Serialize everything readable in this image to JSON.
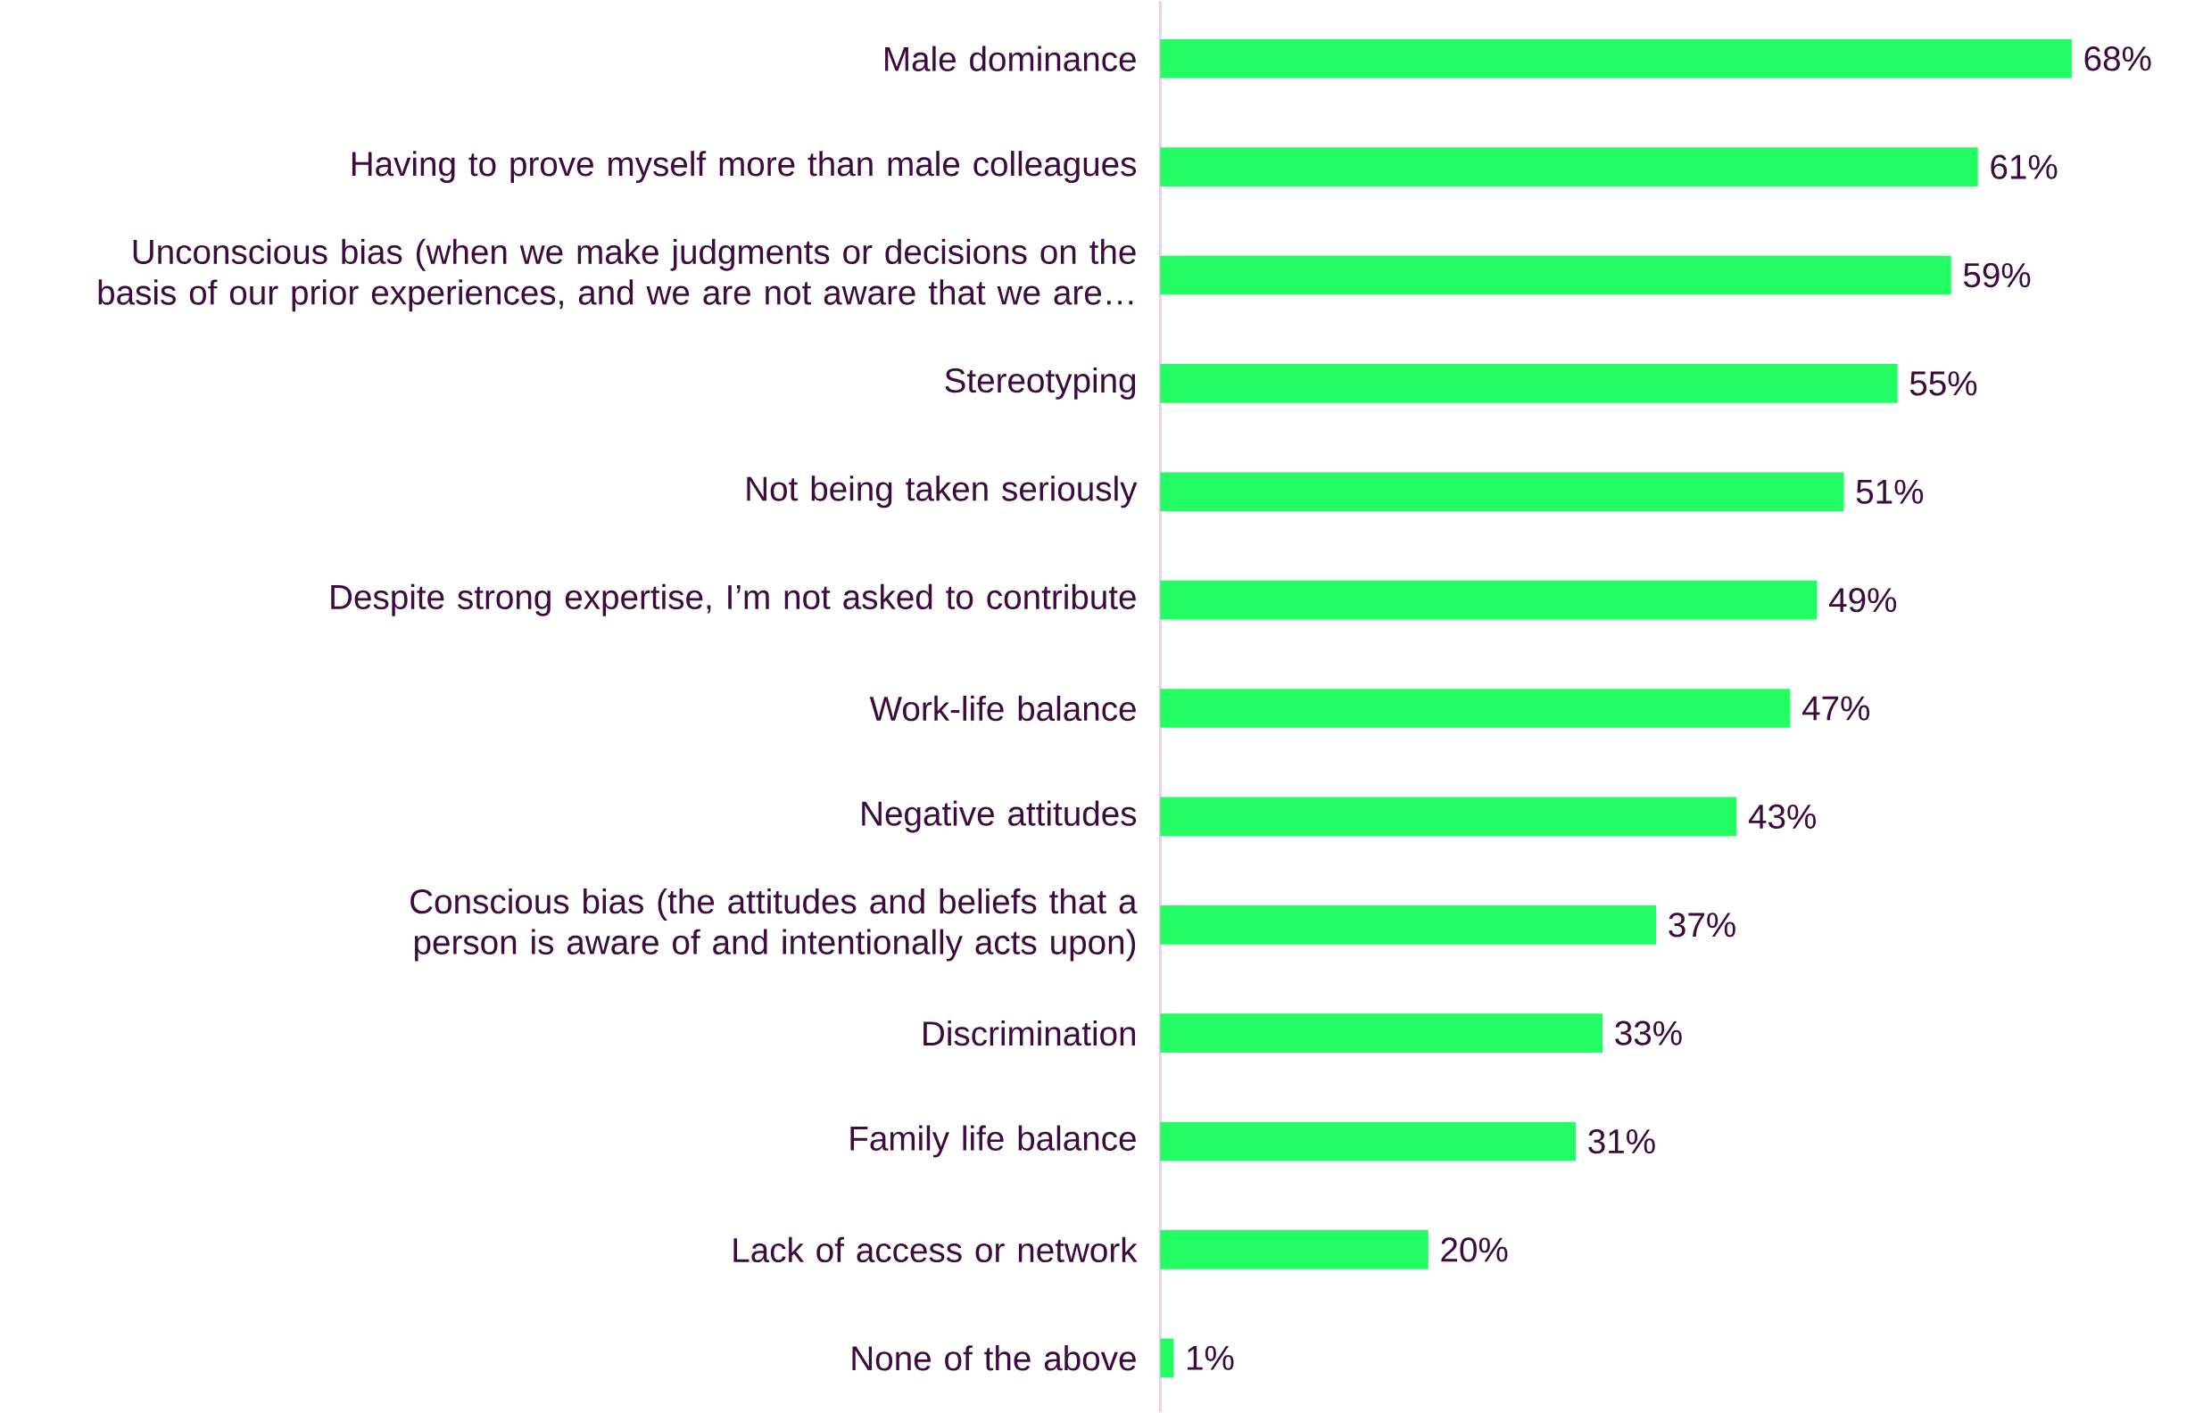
{
  "chart_data": {
    "type": "bar",
    "orientation": "horizontal",
    "color": "#24fc64",
    "categories": [
      "Male dominance",
      "Having to prove myself more than male colleagues",
      "Unconscious bias (when we make judgments or decisions on the basis of our prior experiences, and we are not aware that we are…",
      "Stereotyping",
      "Not being taken seriously",
      "Despite strong expertise, I’m not asked to contribute",
      "Work-life balance",
      "Negative attitudes",
      "Conscious bias (the attitudes and beliefs that a person is aware of and intentionally acts upon)",
      "Discrimination",
      "Family life balance",
      "Lack of access or network",
      "None of the above"
    ],
    "values": [
      68,
      61,
      59,
      55,
      51,
      49,
      47,
      43,
      37,
      33,
      31,
      20,
      1
    ],
    "value_labels": [
      "68%",
      "61%",
      "59%",
      "55%",
      "51%",
      "49%",
      "47%",
      "43%",
      "37%",
      "33%",
      "31%",
      "20%",
      "1%"
    ]
  }
}
